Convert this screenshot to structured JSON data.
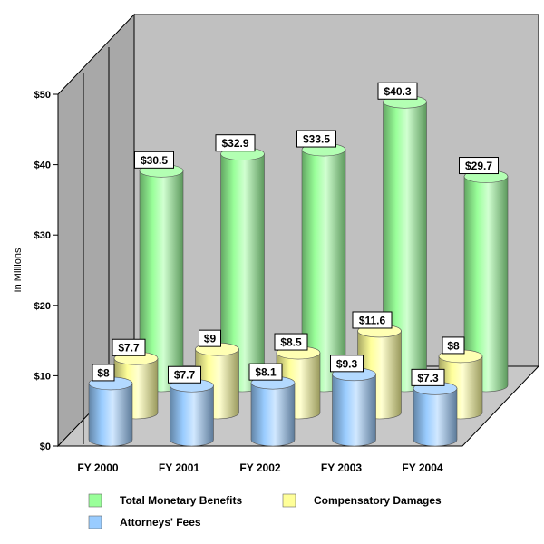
{
  "chart_data": {
    "type": "bar",
    "title": "",
    "xlabel": "",
    "ylabel": "In Millions",
    "ylim": [
      0,
      50
    ],
    "y_ticks": [
      "$0",
      "$10",
      "$20",
      "$30",
      "$40",
      "$50"
    ],
    "categories": [
      "FY 2000",
      "FY 2001",
      "FY 2002",
      "FY 2003",
      "FY 2004"
    ],
    "series": [
      {
        "name": "Total Monetary Benefits",
        "values": [
          30.5,
          32.9,
          33.5,
          40.3,
          29.7
        ],
        "labels": [
          "$30.5",
          "$32.9",
          "$33.5",
          "$40.3",
          "$29.7"
        ],
        "color": "#99ff99"
      },
      {
        "name": "Compensatory Damages",
        "values": [
          7.7,
          9,
          8.5,
          11.6,
          8
        ],
        "labels": [
          "$7.7",
          "$9",
          "$8.5",
          "$11.6",
          "$8"
        ],
        "color": "#ffff99"
      },
      {
        "name": "Attorneys' Fees",
        "values": [
          8,
          7.7,
          8.1,
          9.3,
          7.3
        ],
        "labels": [
          "$8",
          "$7.7",
          "$8.1",
          "$9.3",
          "$7.3"
        ],
        "color": "#99ccff"
      }
    ],
    "grid": false,
    "legend_position": "bottom",
    "style": "3d-cylinder"
  }
}
